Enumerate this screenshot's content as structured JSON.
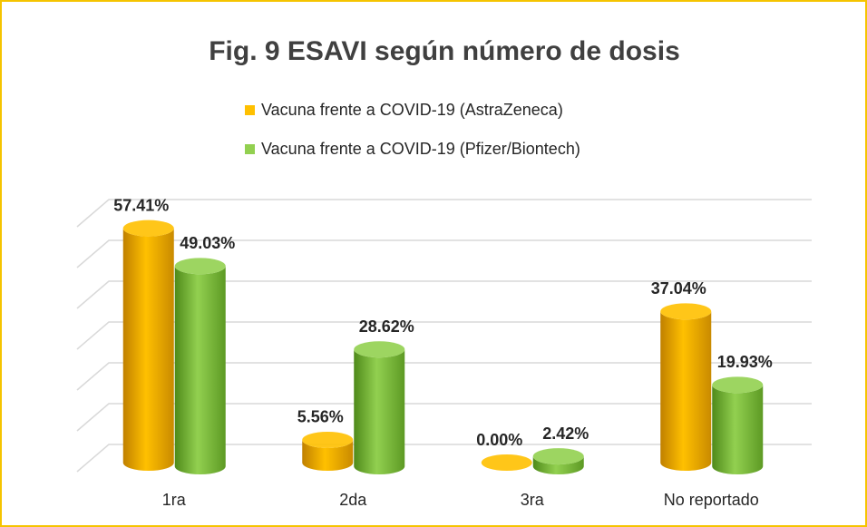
{
  "chart_data": {
    "type": "bar3d",
    "title": "Fig. 9 ESAVI según número de dosis",
    "categories": [
      "1ra",
      "2da",
      "3ra",
      "No reportado"
    ],
    "series": [
      {
        "name": "Vacuna frente a COVID-19 (AstraZeneca)",
        "color": "#ffc000",
        "values": [
          57.41,
          5.56,
          0.0,
          37.04
        ],
        "value_labels": [
          "57.41%",
          "5.56%",
          "0.00%",
          "37.04%"
        ]
      },
      {
        "name": "Vacuna frente a COVID-19 (Pfizer/Biontech)",
        "color": "#92d050",
        "values": [
          49.03,
          28.62,
          2.42,
          19.93
        ],
        "value_labels": [
          "49.03%",
          "28.62%",
          "2.42%",
          "19.93%"
        ]
      }
    ],
    "ylim": [
      0,
      60
    ],
    "yticks": [
      0,
      10,
      20,
      30,
      40,
      50,
      60
    ],
    "grid": true
  }
}
